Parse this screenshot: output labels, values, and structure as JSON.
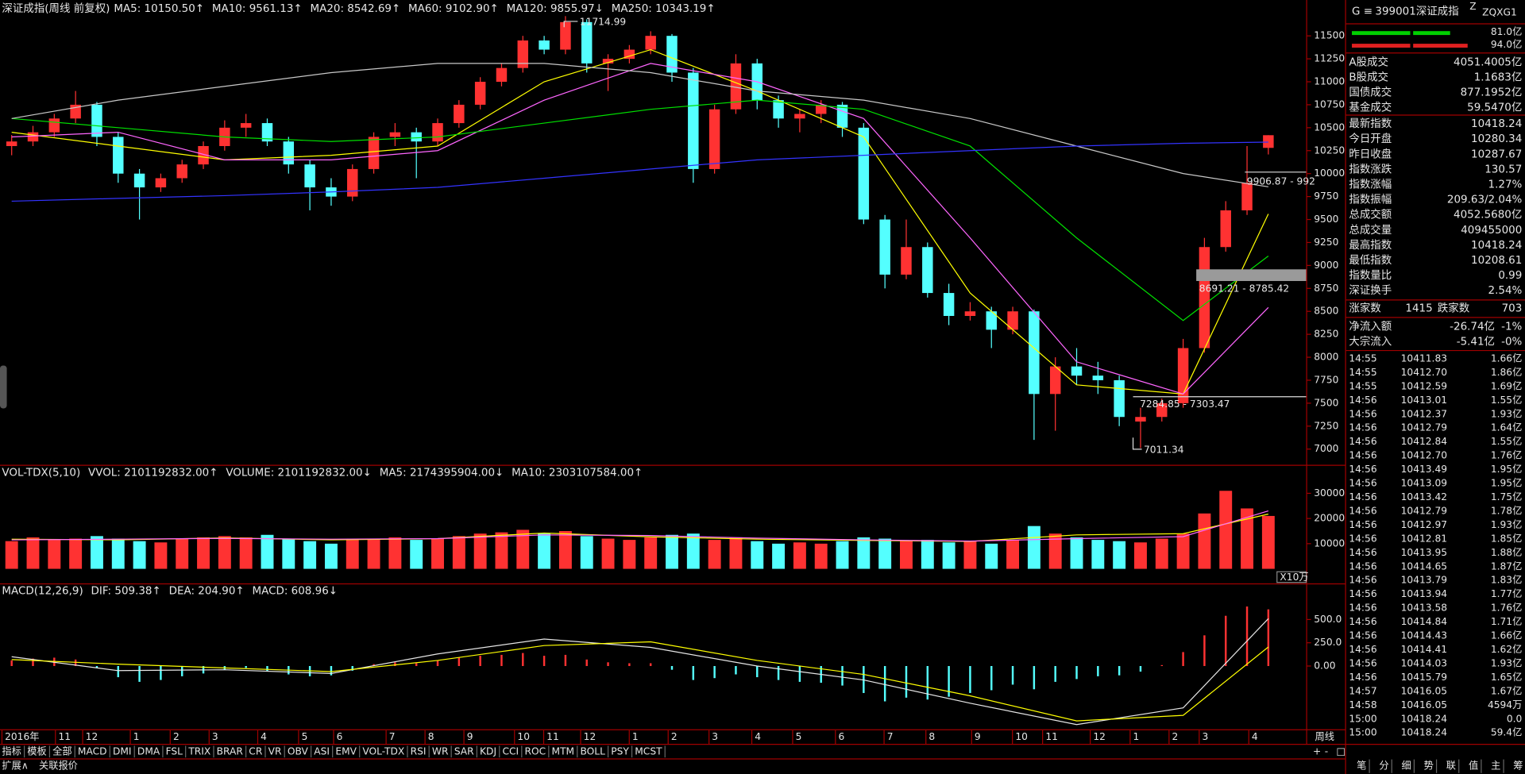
{
  "title_bar": {
    "name": "深证成指(周线 前复权)",
    "indicators": [
      {
        "text": "MA5: 10150.50",
        "arrow": "↑",
        "color": "#ffffff",
        "arrow_color": "#ff3030"
      },
      {
        "text": "MA10: 9561.13",
        "arrow": "↑",
        "color": "#ffff00",
        "arrow_color": "#ff3030"
      },
      {
        "text": "MA20: 8542.69",
        "arrow": "↑",
        "color": "#ff66ff",
        "arrow_color": "#ff3030"
      },
      {
        "text": "MA60: 9102.90",
        "arrow": "↑",
        "color": "#00e000",
        "arrow_color": "#ff3030"
      },
      {
        "text": "MA120: 9855.97",
        "arrow": "↓",
        "color": "#c8c8c8",
        "arrow_color": "#c8c8c8"
      },
      {
        "text": "MA250: 10343.19",
        "arrow": "↑",
        "color": "#3333ff",
        "arrow_color": "#ff3030"
      }
    ]
  },
  "price_chart": {
    "type": "candlestick",
    "ylim": [
      6900,
      11700
    ],
    "yticks": [
      7000,
      7250,
      7500,
      7750,
      8000,
      8250,
      8500,
      8750,
      9000,
      9250,
      9500,
      9750,
      10000,
      10250,
      10500,
      10750,
      11000,
      11250,
      11500
    ],
    "up_color": "#ff3232",
    "down_color": "#54ffff",
    "candles": [
      [
        10300,
        10420,
        10200,
        10350
      ],
      [
        10350,
        10520,
        10300,
        10450
      ],
      [
        10450,
        10650,
        10400,
        10600
      ],
      [
        10600,
        10900,
        10550,
        10750
      ],
      [
        10750,
        10780,
        10300,
        10400
      ],
      [
        10400,
        10450,
        9900,
        10000
      ],
      [
        10000,
        10050,
        9500,
        9850
      ],
      [
        9850,
        10000,
        9800,
        9950
      ],
      [
        9950,
        10150,
        9900,
        10100
      ],
      [
        10100,
        10350,
        10050,
        10300
      ],
      [
        10300,
        10580,
        10250,
        10500
      ],
      [
        10500,
        10650,
        10400,
        10550
      ],
      [
        10550,
        10600,
        10300,
        10350
      ],
      [
        10350,
        10400,
        10000,
        10100
      ],
      [
        10100,
        10150,
        9600,
        9850
      ],
      [
        9850,
        9950,
        9650,
        9750
      ],
      [
        9750,
        10100,
        9700,
        10050
      ],
      [
        10050,
        10450,
        10000,
        10400
      ],
      [
        10400,
        10550,
        10300,
        10450
      ],
      [
        10450,
        10500,
        9950,
        10350
      ],
      [
        10350,
        10600,
        10300,
        10550
      ],
      [
        10550,
        10800,
        10500,
        10750
      ],
      [
        10750,
        11050,
        10700,
        11000
      ],
      [
        11000,
        11200,
        10950,
        11150
      ],
      [
        11150,
        11500,
        11100,
        11450
      ],
      [
        11450,
        11500,
        11300,
        11350
      ],
      [
        11350,
        11714.99,
        11300,
        11650
      ],
      [
        11650,
        11680,
        11100,
        11200
      ],
      [
        11200,
        11300,
        10900,
        11250
      ],
      [
        11250,
        11400,
        11200,
        11350
      ],
      [
        11350,
        11550,
        11300,
        11500
      ],
      [
        11500,
        11520,
        11000,
        11100
      ],
      [
        11100,
        11150,
        9900,
        10050
      ],
      [
        10050,
        10750,
        10000,
        10700
      ],
      [
        10700,
        11300,
        10650,
        11200
      ],
      [
        11200,
        11250,
        10700,
        10800
      ],
      [
        10800,
        10850,
        10500,
        10600
      ],
      [
        10600,
        10700,
        10450,
        10650
      ],
      [
        10650,
        10800,
        10550,
        10750
      ],
      [
        10750,
        10780,
        10400,
        10500
      ],
      [
        10500,
        10550,
        9450,
        9500
      ],
      [
        9500,
        9550,
        8750,
        8900
      ],
      [
        8900,
        9500,
        8850,
        9200
      ],
      [
        9200,
        9250,
        8650,
        8700
      ],
      [
        8700,
        8800,
        8350,
        8450
      ],
      [
        8450,
        8600,
        8400,
        8500
      ],
      [
        8500,
        8550,
        8100,
        8300
      ],
      [
        8300,
        8550,
        8250,
        8500
      ],
      [
        8500,
        8520,
        7100,
        7600
      ],
      [
        7600,
        8000,
        7200,
        7900
      ],
      [
        7900,
        8100,
        7700,
        7800
      ],
      [
        7800,
        7950,
        7600,
        7750
      ],
      [
        7750,
        7800,
        7250,
        7350
      ],
      [
        7300,
        7450,
        7011.34,
        7350
      ],
      [
        7350,
        7550,
        7300,
        7500
      ],
      [
        7500,
        8200,
        7450,
        8100
      ],
      [
        8100,
        9300,
        8050,
        9200
      ],
      [
        9200,
        9700,
        9150,
        9600
      ],
      [
        9600,
        10300,
        9550,
        9900
      ],
      [
        10280.34,
        10418.24,
        10208.61,
        10418.24
      ]
    ],
    "ma_x": [
      0,
      5,
      10,
      15,
      20,
      25,
      30,
      35,
      40,
      45,
      50,
      55,
      59
    ],
    "ma_lines": [
      {
        "color": "#ffff00",
        "values": [
          10450,
          10300,
          10150,
          10200,
          10300,
          11000,
          11350,
          10900,
          10400,
          8700,
          7700,
          7600,
          9561.13
        ]
      },
      {
        "color": "#ff66ff",
        "values": [
          10400,
          10450,
          10150,
          10150,
          10250,
          10800,
          11200,
          11000,
          10600,
          9300,
          7950,
          7600,
          8542.69
        ]
      },
      {
        "color": "#00e000",
        "values": [
          10600,
          10500,
          10400,
          10350,
          10400,
          10550,
          10700,
          10800,
          10700,
          10300,
          9300,
          8400,
          9102.9
        ]
      },
      {
        "color": "#c8c8c8",
        "values": [
          10600,
          10800,
          10950,
          11100,
          11200,
          11200,
          11100,
          10900,
          10800,
          10600,
          10300,
          10000,
          9855.97
        ]
      },
      {
        "color": "#3333ff",
        "values": [
          9700,
          9730,
          9760,
          9800,
          9850,
          9950,
          10050,
          10150,
          10200,
          10250,
          10300,
          10330,
          10343.19
        ]
      }
    ],
    "annotations": [
      "11714.99",
      "7011.34",
      "7284.85 - 7303.47",
      "8691.21 - 8785.42",
      "9906.87 - 992"
    ]
  },
  "volume_chart": {
    "type": "bar",
    "indicators": [
      {
        "text": "VOL-TDX(5,10)",
        "arrow": "",
        "color": "#e6e6e6",
        "arrow_color": "#e6e6e6"
      },
      {
        "text": "VVOL: 2101192832.00",
        "arrow": "↑",
        "color": "#e6e6e6",
        "arrow_color": "#ff3030"
      },
      {
        "text": "VOLUME: 2101192832.00",
        "arrow": "↓",
        "color": "#e6e6e6",
        "arrow_color": "#54ffff"
      },
      {
        "text": "MA5: 2174395904.00",
        "arrow": "↓",
        "color": "#ffff00",
        "arrow_color": "#54ffff"
      },
      {
        "text": "MA10: 2303107584.00",
        "arrow": "↑",
        "color": "#ff66ff",
        "arrow_color": "#ff3030"
      }
    ],
    "ylim": [
      0,
      34000
    ],
    "yticks": [
      10000,
      20000,
      30000
    ],
    "unit_label": "X10万",
    "values": [
      11000,
      12500,
      11500,
      12000,
      13000,
      12000,
      11000,
      10500,
      12000,
      12500,
      13000,
      12500,
      13500,
      12000,
      11000,
      10000,
      11500,
      12000,
      12500,
      11500,
      12000,
      13000,
      14000,
      14500,
      15500,
      14000,
      15000,
      13000,
      12000,
      11500,
      12500,
      13500,
      14000,
      11500,
      12500,
      11000,
      10000,
      10500,
      10000,
      11000,
      12500,
      12000,
      11000,
      11500,
      10500,
      11000,
      10000,
      11500,
      17000,
      14000,
      12500,
      11500,
      11000,
      10500,
      12000,
      14000,
      22000,
      31000,
      24000,
      21011.93
    ],
    "ma_x": [
      0,
      5,
      10,
      15,
      20,
      25,
      30,
      35,
      40,
      45,
      50,
      55,
      59
    ],
    "ma_lines": [
      {
        "color": "#ffff00",
        "values": [
          11800,
          11500,
          12300,
          11500,
          12000,
          14200,
          12700,
          11800,
          11300,
          10900,
          13500,
          14000,
          21743.96
        ]
      },
      {
        "color": "#ff66ff",
        "values": [
          11500,
          11800,
          12100,
          11800,
          12000,
          13500,
          13200,
          12200,
          11500,
          11000,
          12000,
          12800,
          23031.08
        ]
      }
    ]
  },
  "macd_chart": {
    "type": "macd",
    "indicators": [
      {
        "text": "MACD(12,26,9)",
        "arrow": "",
        "color": "#e6e6e6",
        "arrow_color": "#e6e6e6"
      },
      {
        "text": "DIF: 509.38",
        "arrow": "↑",
        "color": "#e6e6e6",
        "arrow_color": "#ff3030"
      },
      {
        "text": "DEA: 204.90",
        "arrow": "↑",
        "color": "#ffff00",
        "arrow_color": "#ff3030"
      },
      {
        "text": "MACD: 608.96",
        "arrow": "↓",
        "color": "#ff66ff",
        "arrow_color": "#54ffff"
      }
    ],
    "ylim": [
      -680,
      700
    ],
    "yticks": [
      {
        "value": 0,
        "label": "0.00"
      },
      {
        "value": 250,
        "label": "250.0"
      },
      {
        "value": 500,
        "label": "500.0"
      }
    ],
    "hist": [
      60,
      80,
      90,
      70,
      -20,
      -120,
      -170,
      -150,
      -110,
      -80,
      -40,
      -20,
      -60,
      -90,
      -110,
      -100,
      -50,
      20,
      40,
      30,
      60,
      90,
      110,
      120,
      140,
      110,
      120,
      70,
      40,
      30,
      30,
      -40,
      -150,
      -130,
      -90,
      -120,
      -150,
      -170,
      -180,
      -210,
      -290,
      -380,
      -340,
      -360,
      -330,
      -290,
      -260,
      -200,
      -250,
      -170,
      -140,
      -110,
      -100,
      -60,
      10,
      150,
      330,
      540,
      640,
      608.96
    ],
    "line_x": [
      0,
      5,
      10,
      15,
      20,
      25,
      30,
      35,
      40,
      45,
      50,
      55,
      59
    ],
    "lines": [
      {
        "color": "#e6e6e6",
        "values": [
          100,
          -50,
          -40,
          -80,
          130,
          290,
          200,
          0,
          -150,
          -400,
          -630,
          -450,
          509.38
        ]
      },
      {
        "color": "#ffff00",
        "values": [
          70,
          20,
          -20,
          -60,
          60,
          220,
          260,
          60,
          -90,
          -320,
          -590,
          -530,
          204.9
        ]
      }
    ]
  },
  "x_axis": {
    "labels": [
      "2016年",
      "11",
      "12",
      "1",
      "2",
      "3",
      "4",
      "5",
      "6",
      "7",
      "8",
      "9",
      "10",
      "11",
      "12",
      "1",
      "2",
      "3",
      "4",
      "5",
      "6",
      "7",
      "8",
      "9",
      "10",
      "11",
      "12",
      "1",
      "2",
      "3",
      "4"
    ],
    "period": "周线"
  },
  "toolbar": {
    "tabs": [
      "指标",
      "模板",
      "全部",
      "MACD",
      "DMI",
      "DMA",
      "FSL",
      "TRIX",
      "BRAR",
      "CR",
      "VR",
      "OBV",
      "ASI",
      "EMV",
      "VOL-TDX",
      "RSI",
      "WR",
      "SAR",
      "KDJ",
      "CCI",
      "ROC",
      "MTM",
      "BOLL",
      "PSY",
      "MCST"
    ],
    "active": "MACD",
    "expand": "扩展∧",
    "related": "关联报价",
    "zoom": [
      "+",
      "-",
      "□"
    ]
  },
  "side_panel": {
    "mark": "G",
    "menu": "≡",
    "code": "399001",
    "name": "深证成指",
    "flag": "Z",
    "tag": "ZQXG1",
    "bar_values": [
      "81.0亿",
      "94.0亿"
    ],
    "stats": [
      {
        "label": "A股成交",
        "value": "4051.4005亿",
        "color": "#ffff00"
      },
      {
        "label": "B股成交",
        "value": "1.1683亿",
        "color": "#ffff00"
      },
      {
        "label": "国债成交",
        "value": "877.1952亿",
        "color": "#ffff00"
      },
      {
        "label": "基金成交",
        "value": "59.5470亿",
        "color": "#ffff00"
      },
      {
        "label": "最新指数",
        "value": "10418.24",
        "color": "#ff3232"
      },
      {
        "label": "今日开盘",
        "value": "10280.34",
        "color": "#ff3232"
      },
      {
        "label": "昨日收盘",
        "value": "10287.67",
        "color": "#ffffff"
      },
      {
        "label": "指数涨跌",
        "value": "130.57",
        "color": "#ff3232"
      },
      {
        "label": "指数涨幅",
        "value": "1.27%",
        "color": "#ff3232"
      },
      {
        "label": "指数振幅",
        "value": "209.63/2.04%",
        "color": "#ffffff"
      },
      {
        "label": "总成交额",
        "value": "4052.5680亿",
        "color": "#ffff00"
      },
      {
        "label": "总成交量",
        "value": "409455000",
        "color": "#ffff00"
      },
      {
        "label": "最高指数",
        "value": "10418.24",
        "color": "#ff3232"
      },
      {
        "label": "最低指数",
        "value": "10208.61",
        "color": "#ff3232"
      },
      {
        "label": "指数量比",
        "value": "0.99",
        "color": "#ffff00"
      },
      {
        "label": "深证换手",
        "value": "2.54%",
        "color": "#ffffff"
      }
    ],
    "breadth": {
      "up_label": "涨家数",
      "up": "1415",
      "down_label": "跌家数",
      "down": "703"
    },
    "flows": [
      {
        "label": "净流入额",
        "value": "-26.74亿",
        "pct": "-1%"
      },
      {
        "label": "大宗流入",
        "value": "-5.41亿",
        "pct": "-0%"
      }
    ],
    "ticks": [
      [
        "14:55",
        "10411.83",
        "1.66亿"
      ],
      [
        "14:55",
        "10412.70",
        "1.86亿"
      ],
      [
        "14:55",
        "10412.59",
        "1.69亿"
      ],
      [
        "14:56",
        "10413.01",
        "1.55亿"
      ],
      [
        "14:56",
        "10412.37",
        "1.93亿"
      ],
      [
        "14:56",
        "10412.79",
        "1.64亿"
      ],
      [
        "14:56",
        "10412.84",
        "1.55亿"
      ],
      [
        "14:56",
        "10412.70",
        "1.76亿"
      ],
      [
        "14:56",
        "10413.49",
        "1.95亿"
      ],
      [
        "14:56",
        "10413.09",
        "1.95亿"
      ],
      [
        "14:56",
        "10413.42",
        "1.75亿"
      ],
      [
        "14:56",
        "10412.79",
        "1.78亿"
      ],
      [
        "14:56",
        "10412.97",
        "1.93亿"
      ],
      [
        "14:56",
        "10412.81",
        "1.85亿"
      ],
      [
        "14:56",
        "10413.95",
        "1.88亿"
      ],
      [
        "14:56",
        "10414.65",
        "1.87亿"
      ],
      [
        "14:56",
        "10413.79",
        "1.83亿"
      ],
      [
        "14:56",
        "10413.94",
        "1.77亿"
      ],
      [
        "14:56",
        "10413.58",
        "1.76亿"
      ],
      [
        "14:56",
        "10414.84",
        "1.71亿"
      ],
      [
        "14:56",
        "10414.43",
        "1.66亿"
      ],
      [
        "14:56",
        "10414.41",
        "1.62亿"
      ],
      [
        "14:56",
        "10414.03",
        "1.93亿"
      ],
      [
        "14:56",
        "10415.79",
        "1.65亿"
      ],
      [
        "14:57",
        "10416.05",
        "1.67亿"
      ],
      [
        "14:58",
        "10416.05",
        "4594万"
      ],
      [
        "15:00",
        "10418.24",
        "0.0"
      ],
      [
        "15:00",
        "10418.24",
        "59.4亿"
      ]
    ],
    "tabs": [
      "笔",
      "分",
      "细",
      "势",
      "联",
      "值",
      "主",
      "筹"
    ]
  }
}
